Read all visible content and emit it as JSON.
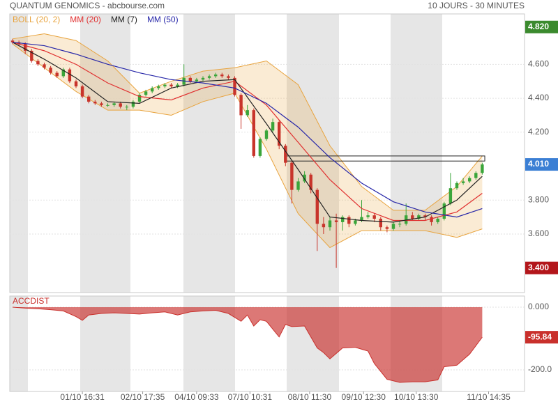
{
  "chart_data": [
    {
      "type": "candlestick",
      "title": "QUANTUM GENOMICS - abcbourse.com",
      "subtitle": "10 JOURS - 30 MINUTES",
      "open": [
        4.74,
        4.73,
        4.72,
        4.68,
        4.62,
        4.6,
        4.58,
        4.55,
        4.53,
        4.57,
        4.5,
        4.47,
        4.41,
        4.38,
        4.37,
        4.36,
        4.36,
        4.37,
        4.35,
        4.35,
        4.38,
        4.42,
        4.44,
        4.46,
        4.47,
        4.48,
        4.47,
        4.48,
        4.52,
        4.5,
        4.51,
        4.52,
        4.53,
        4.54,
        4.53,
        4.52,
        4.42,
        4.3,
        4.33,
        4.06,
        4.16,
        4.21,
        4.26,
        4.12,
        4.02,
        3.86,
        3.91,
        3.95,
        3.86,
        3.66,
        3.64,
        3.68,
        3.67,
        3.7,
        3.66,
        3.68,
        3.7,
        3.71,
        3.69,
        3.64,
        3.63,
        3.66,
        3.66,
        3.71,
        3.69,
        3.71,
        3.7,
        3.67,
        3.69,
        3.78,
        3.87,
        3.9,
        3.91,
        3.93,
        3.96
      ],
      "high": [
        4.75,
        4.74,
        4.73,
        4.69,
        4.63,
        4.61,
        4.59,
        4.56,
        4.58,
        4.58,
        4.51,
        4.48,
        4.42,
        4.39,
        4.38,
        4.37,
        4.38,
        4.38,
        4.36,
        4.39,
        4.43,
        4.45,
        4.47,
        4.48,
        4.49,
        4.49,
        4.49,
        4.6,
        4.53,
        4.52,
        4.53,
        4.54,
        4.55,
        4.55,
        4.54,
        4.53,
        4.43,
        4.36,
        4.34,
        4.17,
        4.22,
        4.28,
        4.27,
        4.13,
        4.03,
        3.93,
        3.97,
        3.96,
        3.87,
        3.7,
        3.7,
        3.72,
        3.71,
        3.71,
        3.69,
        3.8,
        3.73,
        3.72,
        3.7,
        3.65,
        3.67,
        3.68,
        3.78,
        3.73,
        3.72,
        3.72,
        3.71,
        3.7,
        3.79,
        3.96,
        3.91,
        3.93,
        3.94,
        3.97,
        4.02
      ],
      "low": [
        4.72,
        4.71,
        4.66,
        4.61,
        4.59,
        4.57,
        4.54,
        4.52,
        4.52,
        4.49,
        4.46,
        4.4,
        4.37,
        4.36,
        4.35,
        4.35,
        4.35,
        4.34,
        4.33,
        4.34,
        4.37,
        4.41,
        4.43,
        4.45,
        4.46,
        4.46,
        4.46,
        4.47,
        4.49,
        4.49,
        4.5,
        4.51,
        4.52,
        4.52,
        4.51,
        4.41,
        4.22,
        4.29,
        4.05,
        4.05,
        4.15,
        4.2,
        4.1,
        4.0,
        3.78,
        3.85,
        3.9,
        3.84,
        3.5,
        3.6,
        3.62,
        3.4,
        3.62,
        3.64,
        3.65,
        3.67,
        3.69,
        3.67,
        3.62,
        3.61,
        3.62,
        3.64,
        3.65,
        3.68,
        3.68,
        3.68,
        3.65,
        3.66,
        3.68,
        3.77,
        3.86,
        3.89,
        3.9,
        3.92,
        3.95
      ],
      "close": [
        4.73,
        4.72,
        4.68,
        4.62,
        4.6,
        4.58,
        4.55,
        4.53,
        4.57,
        4.5,
        4.47,
        4.41,
        4.38,
        4.37,
        4.36,
        4.36,
        4.37,
        4.35,
        4.35,
        4.38,
        4.42,
        4.44,
        4.46,
        4.47,
        4.48,
        4.47,
        4.48,
        4.52,
        4.5,
        4.51,
        4.52,
        4.53,
        4.54,
        4.53,
        4.52,
        4.42,
        4.3,
        4.33,
        4.06,
        4.16,
        4.21,
        4.26,
        4.12,
        4.02,
        3.86,
        3.91,
        3.95,
        3.86,
        3.66,
        3.64,
        3.68,
        3.67,
        3.7,
        3.66,
        3.68,
        3.7,
        3.71,
        3.69,
        3.64,
        3.63,
        3.66,
        3.66,
        3.71,
        3.69,
        3.71,
        3.7,
        3.67,
        3.69,
        3.78,
        3.87,
        3.9,
        3.91,
        3.93,
        3.96,
        4.01
      ],
      "up_color": "#3aa53a",
      "down_color": "#c8342b",
      "xlim": [
        -0.44,
        80.66
      ],
      "xticks": [
        {
          "value": 11,
          "label": "01/10 16:31"
        },
        {
          "value": 20.5,
          "label": "02/10 17:35"
        },
        {
          "value": 29,
          "label": "04/10 09:33"
        },
        {
          "value": 37.4,
          "label": "07/10 10:31"
        },
        {
          "value": 46.8,
          "label": "08/10 11:30"
        },
        {
          "value": 55.3,
          "label": "09/10 12:30"
        },
        {
          "value": 63.6,
          "label": "10/10 13:30"
        },
        {
          "value": 75,
          "label": "11/10 14:35"
        }
      ],
      "ylim": [
        3.255,
        4.897
      ],
      "yticks": [
        {
          "value": 3.6,
          "label": "3.600"
        },
        {
          "value": 3.8,
          "label": "3.800"
        },
        {
          "value": 4.2,
          "label": "4.200"
        },
        {
          "value": 4.4,
          "label": "4.400"
        },
        {
          "value": 4.6,
          "label": "4.600"
        }
      ],
      "grid": true,
      "price_markers": [
        {
          "value": 4.82,
          "label": "4.820",
          "color": "#3b8a2e"
        },
        {
          "value": 4.01,
          "label": "4.010",
          "color": "#3b7fd4"
        },
        {
          "value": 3.4,
          "label": "3.400",
          "color": "#b3161b"
        }
      ],
      "bands": {
        "name": "BOLL (20, 2)",
        "color": "#e8a33d",
        "x": [
          0,
          5,
          10,
          15,
          20,
          25,
          30,
          35,
          40,
          45,
          50,
          55,
          60,
          65,
          70,
          74
        ],
        "upper": [
          4.75,
          4.78,
          4.74,
          4.62,
          4.43,
          4.5,
          4.56,
          4.58,
          4.62,
          4.48,
          4.12,
          3.88,
          3.74,
          3.74,
          3.88,
          4.06
        ],
        "lower": [
          4.72,
          4.58,
          4.44,
          4.33,
          4.33,
          4.3,
          4.38,
          4.43,
          4.1,
          3.72,
          3.52,
          3.62,
          3.62,
          3.62,
          3.58,
          3.63
        ]
      },
      "series": [
        {
          "name": "MM (20)",
          "color": "#e03030",
          "x": [
            0,
            5,
            10,
            15,
            20,
            25,
            30,
            35,
            40,
            45,
            50,
            55,
            60,
            65,
            70,
            74
          ],
          "values": [
            4.73,
            4.68,
            4.6,
            4.49,
            4.41,
            4.39,
            4.46,
            4.5,
            4.36,
            4.14,
            3.92,
            3.75,
            3.68,
            3.68,
            3.73,
            3.84
          ]
        },
        {
          "name": "MM (7)",
          "color": "#222222",
          "x": [
            0,
            5,
            10,
            15,
            20,
            25,
            30,
            35,
            40,
            45,
            50,
            55,
            60,
            65,
            70,
            74
          ],
          "values": [
            4.73,
            4.63,
            4.52,
            4.38,
            4.37,
            4.46,
            4.5,
            4.51,
            4.25,
            3.98,
            3.7,
            3.68,
            3.67,
            3.7,
            3.8,
            3.94
          ]
        },
        {
          "name": "MM (50)",
          "color": "#2626a8",
          "x": [
            0,
            5,
            10,
            15,
            20,
            25,
            30,
            35,
            40,
            45,
            50,
            55,
            60,
            65,
            70,
            74
          ],
          "values": [
            4.73,
            4.71,
            4.66,
            4.6,
            4.55,
            4.51,
            4.49,
            4.46,
            4.37,
            4.23,
            4.05,
            3.9,
            3.79,
            3.73,
            3.7,
            3.75
          ]
        }
      ],
      "zone": {
        "x": [
          43,
          74.4
        ],
        "y": [
          4.03,
          4.06
        ]
      }
    },
    {
      "type": "area",
      "title": "ACCDIST",
      "color": "#c9302c",
      "x": [
        0,
        2,
        4,
        6,
        8,
        10,
        11,
        12,
        14,
        16,
        18,
        20,
        22,
        24,
        26,
        28,
        30,
        32,
        34,
        36,
        37,
        38,
        39,
        40,
        42,
        43,
        44,
        46,
        48,
        49,
        50,
        52,
        54,
        56,
        57,
        59,
        61,
        63,
        65,
        67,
        68,
        70,
        72,
        74
      ],
      "values": [
        0,
        -3,
        -5,
        -8,
        -12,
        -30,
        -42,
        -25,
        -20,
        -18,
        -20,
        -22,
        -18,
        -15,
        -25,
        -15,
        -12,
        -10,
        -20,
        -45,
        -25,
        -60,
        -40,
        -45,
        -95,
        -55,
        -62,
        -60,
        -130,
        -145,
        -165,
        -130,
        -128,
        -140,
        -180,
        -230,
        -240,
        -238,
        -238,
        -232,
        -190,
        -185,
        -150,
        -95.84
      ],
      "xlim": [
        -0.44,
        80.66
      ],
      "ylim": [
        -268.9,
        35.6
      ],
      "yticks": [
        {
          "value": 0,
          "label": "0.000"
        },
        {
          "value": -200,
          "label": "-200.0"
        }
      ]
    }
  ]
}
